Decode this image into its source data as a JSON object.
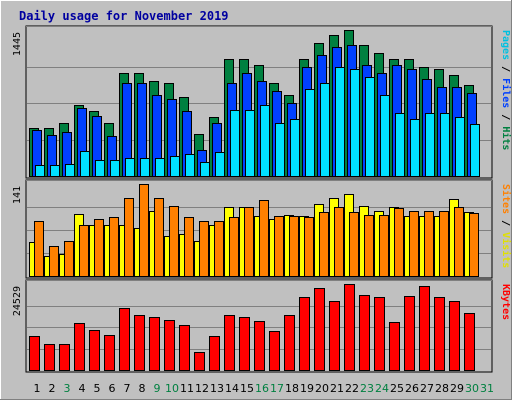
{
  "chart_data": {
    "type": "bar",
    "title": "Daily usage for November 2019",
    "categories": [
      "1",
      "2",
      "3",
      "4",
      "5",
      "6",
      "7",
      "8",
      "9",
      "10",
      "11",
      "12",
      "13",
      "14",
      "15",
      "16",
      "17",
      "18",
      "19",
      "20",
      "21",
      "22",
      "23",
      "24",
      "25",
      "26",
      "27",
      "28",
      "29",
      "30",
      "31"
    ],
    "weekend_days": [
      "3",
      "9",
      "10",
      "16",
      "17",
      "23",
      "24",
      "30",
      "31"
    ],
    "colors": {
      "frame": "#c0c0c0",
      "plot_background": "#c0c0c0",
      "title": "#0000a0",
      "hits": "#008040",
      "files": "#0040ff",
      "pages": "#00e0ff",
      "visits": "#ffff00",
      "sites": "#ff8000",
      "kbytes": "#ff0000",
      "weekday_label": "#000000",
      "weekend_label": "#008040"
    },
    "panels": [
      {
        "id": "hits_files_pages",
        "ymax_label": "1445",
        "ymax": 1445,
        "axis_labels": [
          {
            "text": "Pages",
            "color": "#00c0e0"
          },
          {
            "text": " / ",
            "color": "#000000"
          },
          {
            "text": "Files",
            "color": "#0040ff"
          },
          {
            "text": " / ",
            "color": "#000000"
          },
          {
            "text": "Hits",
            "color": "#008040"
          }
        ],
        "series": [
          {
            "name": "Hits",
            "values": [
              480,
              480,
              520,
              700,
              640,
              520,
              1020,
              1020,
              940,
              920,
              780,
              420,
              580,
              1160,
              1160,
              1100,
              920,
              800,
              1160,
              1320,
              1400,
              1445,
              1300,
              1220,
              1160,
              1160,
              1080,
              1060,
              1000,
              900
            ]
          },
          {
            "name": "Files",
            "values": [
              460,
              410,
              440,
              670,
              590,
              400,
              920,
              920,
              800,
              760,
              640,
              260,
              520,
              920,
              1020,
              940,
              840,
              720,
              1080,
              1200,
              1280,
              1300,
              1100,
              1020,
              1100,
              1060,
              960,
              880,
              880,
              820
            ]
          },
          {
            "name": "Pages",
            "values": [
              110,
              110,
              120,
              250,
              160,
              160,
              180,
              180,
              180,
              200,
              220,
              140,
              240,
              650,
              650,
              700,
              520,
              560,
              860,
              920,
              1080,
              1060,
              980,
              800,
              620,
              560,
              620,
              620,
              580,
              510
            ]
          }
        ]
      },
      {
        "id": "visits_sites",
        "ymax_label": "141",
        "ymax": 141,
        "axis_labels": [
          {
            "text": "Sites",
            "color": "#ff8000"
          },
          {
            "text": " / ",
            "color": "#000000"
          },
          {
            "text": "Visits",
            "color": "#e0e000"
          }
        ],
        "series": [
          {
            "name": "Visits",
            "values": [
              52,
              30,
              34,
              95,
              78,
              78,
              78,
              74,
              100,
              62,
              64,
              54,
              78,
              105,
              105,
              92,
              88,
              94,
              92,
              110,
              120,
              126,
              108,
              100,
              106,
              92,
              92,
              92,
              118,
              98
            ]
          },
          {
            "name": "Sites",
            "values": [
              84,
              46,
              54,
              78,
              88,
              90,
              120,
              141,
              120,
              108,
              90,
              84,
              84,
              90,
              105,
              116,
              92,
              92,
              90,
              98,
              105,
              98,
              94,
              94,
              104,
              100,
              100,
              100,
              106,
              96
            ]
          }
        ]
      },
      {
        "id": "kbytes",
        "ymax_label": "24529",
        "ymax": 24529,
        "axis_labels": [
          {
            "text": "KBytes",
            "color": "#ff0000"
          }
        ],
        "series": [
          {
            "name": "KBytes",
            "values": [
              9600,
              7300,
              7300,
              13500,
              11500,
              10000,
              17700,
              15600,
              15000,
              14400,
              12800,
              5100,
              9600,
              15600,
              15000,
              14000,
              11200,
              15600,
              20800,
              23400,
              19800,
              24529,
              21400,
              20800,
              13800,
              21000,
              24000,
              20800,
              19800,
              16400
            ]
          }
        ]
      }
    ]
  }
}
